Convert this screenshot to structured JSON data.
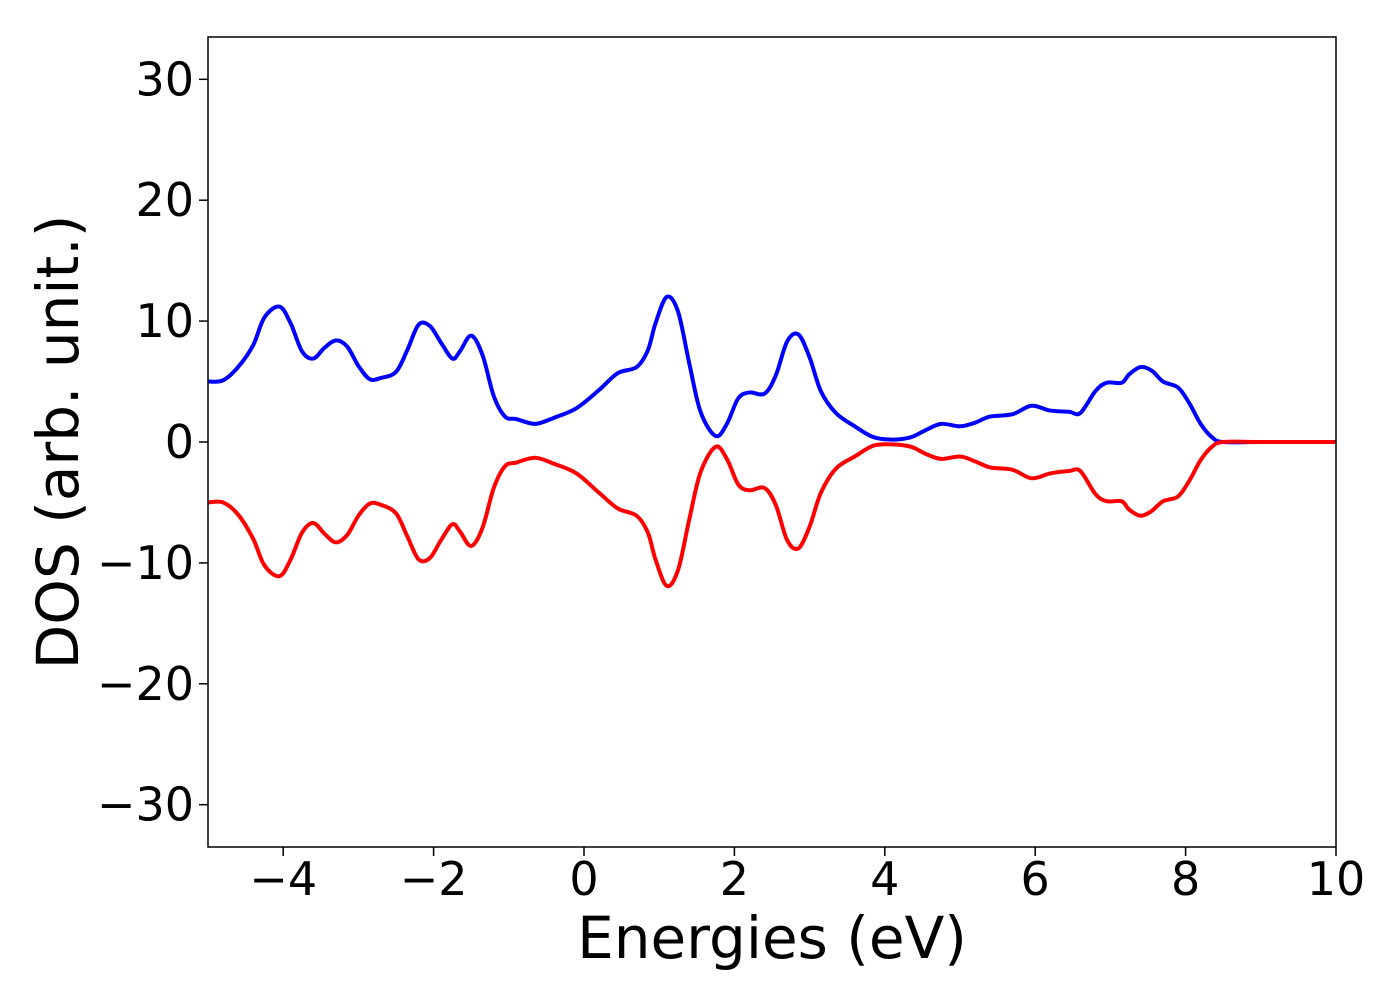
{
  "chart_data": {
    "type": "line",
    "xlabel": "Energies (eV)",
    "ylabel": "DOS (arb. unit.)",
    "xlim": [
      -5,
      10
    ],
    "ylim": [
      -33.5,
      33.5
    ],
    "xticks": [
      -4,
      -2,
      0,
      2,
      4,
      6,
      8,
      10
    ],
    "xtick_labels": [
      "−4",
      "−2",
      "0",
      "2",
      "4",
      "6",
      "8",
      "10"
    ],
    "yticks": [
      30,
      20,
      10,
      0,
      -10,
      -20,
      -30
    ],
    "ytick_labels": [
      "30",
      "20",
      "10",
      "0",
      "−10",
      "−20",
      "−30"
    ],
    "grid": false,
    "series": [
      {
        "color": "#0000ff",
        "points": [
          [
            -5.0,
            5.0
          ],
          [
            -4.8,
            5.1
          ],
          [
            -4.6,
            6.2
          ],
          [
            -4.4,
            8.0
          ],
          [
            -4.25,
            10.3
          ],
          [
            -4.05,
            11.2
          ],
          [
            -3.9,
            9.8
          ],
          [
            -3.75,
            7.5
          ],
          [
            -3.6,
            6.9
          ],
          [
            -3.45,
            7.8
          ],
          [
            -3.3,
            8.4
          ],
          [
            -3.15,
            7.9
          ],
          [
            -3.0,
            6.3
          ],
          [
            -2.85,
            5.2
          ],
          [
            -2.7,
            5.3
          ],
          [
            -2.5,
            5.8
          ],
          [
            -2.35,
            7.6
          ],
          [
            -2.2,
            9.7
          ],
          [
            -2.05,
            9.6
          ],
          [
            -1.9,
            8.2
          ],
          [
            -1.75,
            6.9
          ],
          [
            -1.65,
            7.5
          ],
          [
            -1.5,
            8.8
          ],
          [
            -1.35,
            7.2
          ],
          [
            -1.2,
            3.8
          ],
          [
            -1.05,
            2.1
          ],
          [
            -0.9,
            1.9
          ],
          [
            -0.65,
            1.5
          ],
          [
            -0.4,
            2.0
          ],
          [
            -0.1,
            2.8
          ],
          [
            0.2,
            4.3
          ],
          [
            0.45,
            5.7
          ],
          [
            0.7,
            6.2
          ],
          [
            0.85,
            7.6
          ],
          [
            0.95,
            9.8
          ],
          [
            1.1,
            12.0
          ],
          [
            1.25,
            10.8
          ],
          [
            1.4,
            6.5
          ],
          [
            1.55,
            2.5
          ],
          [
            1.75,
            0.5
          ],
          [
            1.9,
            1.5
          ],
          [
            2.05,
            3.6
          ],
          [
            2.2,
            4.1
          ],
          [
            2.4,
            4.0
          ],
          [
            2.55,
            5.5
          ],
          [
            2.7,
            8.3
          ],
          [
            2.85,
            8.9
          ],
          [
            3.0,
            7.0
          ],
          [
            3.15,
            4.2
          ],
          [
            3.35,
            2.4
          ],
          [
            3.6,
            1.3
          ],
          [
            3.85,
            0.4
          ],
          [
            4.1,
            0.2
          ],
          [
            4.35,
            0.4
          ],
          [
            4.55,
            1.0
          ],
          [
            4.75,
            1.5
          ],
          [
            5.0,
            1.3
          ],
          [
            5.2,
            1.6
          ],
          [
            5.4,
            2.1
          ],
          [
            5.7,
            2.3
          ],
          [
            5.95,
            3.0
          ],
          [
            6.2,
            2.6
          ],
          [
            6.45,
            2.5
          ],
          [
            6.6,
            2.4
          ],
          [
            6.8,
            4.2
          ],
          [
            6.95,
            4.9
          ],
          [
            7.15,
            4.9
          ],
          [
            7.25,
            5.6
          ],
          [
            7.4,
            6.2
          ],
          [
            7.55,
            5.9
          ],
          [
            7.7,
            5.0
          ],
          [
            7.9,
            4.5
          ],
          [
            8.05,
            3.2
          ],
          [
            8.2,
            1.5
          ],
          [
            8.35,
            0.4
          ],
          [
            8.5,
            0.0
          ],
          [
            9.0,
            0.0
          ],
          [
            10.0,
            0.0
          ]
        ]
      },
      {
        "color": "#ff0000",
        "points": [
          [
            -5.0,
            -5.0
          ],
          [
            -4.8,
            -5.0
          ],
          [
            -4.6,
            -6.0
          ],
          [
            -4.4,
            -8.0
          ],
          [
            -4.25,
            -10.2
          ],
          [
            -4.05,
            -11.1
          ],
          [
            -3.9,
            -9.7
          ],
          [
            -3.75,
            -7.5
          ],
          [
            -3.6,
            -6.7
          ],
          [
            -3.45,
            -7.6
          ],
          [
            -3.3,
            -8.3
          ],
          [
            -3.15,
            -7.7
          ],
          [
            -3.0,
            -6.1
          ],
          [
            -2.85,
            -5.1
          ],
          [
            -2.7,
            -5.2
          ],
          [
            -2.5,
            -5.9
          ],
          [
            -2.35,
            -7.8
          ],
          [
            -2.2,
            -9.7
          ],
          [
            -2.05,
            -9.6
          ],
          [
            -1.9,
            -8.1
          ],
          [
            -1.75,
            -6.8
          ],
          [
            -1.65,
            -7.4
          ],
          [
            -1.5,
            -8.6
          ],
          [
            -1.35,
            -7.1
          ],
          [
            -1.2,
            -3.8
          ],
          [
            -1.05,
            -2.0
          ],
          [
            -0.9,
            -1.7
          ],
          [
            -0.65,
            -1.3
          ],
          [
            -0.4,
            -1.8
          ],
          [
            -0.1,
            -2.6
          ],
          [
            0.2,
            -4.2
          ],
          [
            0.45,
            -5.5
          ],
          [
            0.7,
            -6.1
          ],
          [
            0.85,
            -7.5
          ],
          [
            0.95,
            -9.7
          ],
          [
            1.1,
            -11.9
          ],
          [
            1.25,
            -10.6
          ],
          [
            1.4,
            -6.4
          ],
          [
            1.55,
            -2.5
          ],
          [
            1.75,
            -0.4
          ],
          [
            1.9,
            -1.4
          ],
          [
            2.05,
            -3.5
          ],
          [
            2.2,
            -4.0
          ],
          [
            2.4,
            -3.8
          ],
          [
            2.55,
            -5.2
          ],
          [
            2.7,
            -8.1
          ],
          [
            2.85,
            -8.8
          ],
          [
            3.0,
            -7.0
          ],
          [
            3.15,
            -4.2
          ],
          [
            3.35,
            -2.2
          ],
          [
            3.6,
            -1.2
          ],
          [
            3.85,
            -0.3
          ],
          [
            4.1,
            -0.2
          ],
          [
            4.35,
            -0.4
          ],
          [
            4.55,
            -1.0
          ],
          [
            4.75,
            -1.4
          ],
          [
            5.0,
            -1.2
          ],
          [
            5.2,
            -1.6
          ],
          [
            5.4,
            -2.1
          ],
          [
            5.7,
            -2.3
          ],
          [
            5.95,
            -3.0
          ],
          [
            6.2,
            -2.6
          ],
          [
            6.45,
            -2.4
          ],
          [
            6.6,
            -2.4
          ],
          [
            6.8,
            -4.3
          ],
          [
            6.95,
            -4.9
          ],
          [
            7.15,
            -4.9
          ],
          [
            7.25,
            -5.6
          ],
          [
            7.4,
            -6.1
          ],
          [
            7.55,
            -5.7
          ],
          [
            7.7,
            -4.9
          ],
          [
            7.9,
            -4.5
          ],
          [
            8.05,
            -3.2
          ],
          [
            8.2,
            -1.5
          ],
          [
            8.35,
            -0.4
          ],
          [
            8.5,
            0.0
          ],
          [
            9.0,
            0.0
          ],
          [
            10.0,
            0.0
          ]
        ]
      }
    ]
  }
}
